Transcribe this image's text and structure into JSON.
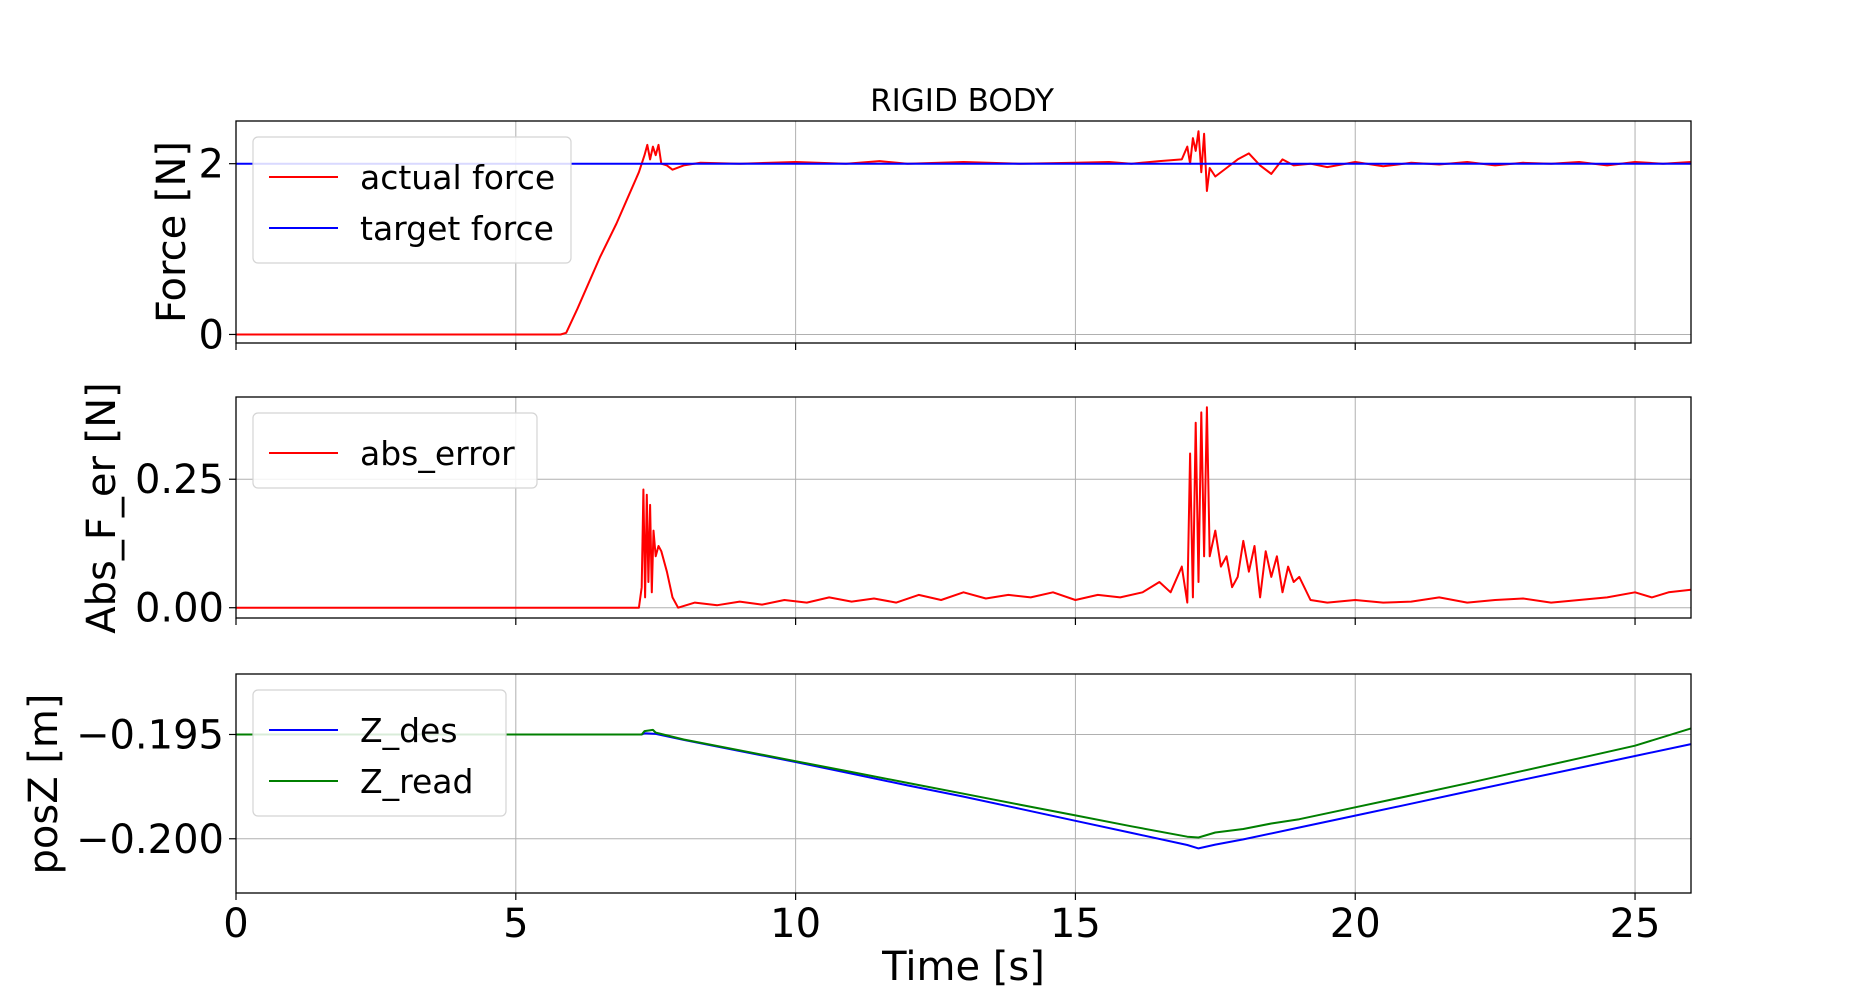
{
  "chart_data": [
    {
      "type": "line",
      "title": "RIGID BODY",
      "xlabel": "",
      "ylabel": "Force [N]",
      "xlim": [
        0,
        26
      ],
      "ylim": [
        -0.1,
        2.5
      ],
      "xticks": [
        0,
        5,
        10,
        15,
        20,
        25
      ],
      "yticks": [
        0,
        2
      ],
      "ytick_labels": [
        "0",
        "2"
      ],
      "grid": true,
      "legend_position": "upper-left",
      "series": [
        {
          "name": "actual force",
          "color": "#ff0000",
          "x": [
            0,
            5.8,
            5.9,
            6.1,
            6.3,
            6.5,
            6.8,
            7.0,
            7.2,
            7.3,
            7.35,
            7.4,
            7.45,
            7.5,
            7.55,
            7.6,
            7.7,
            7.8,
            8.0,
            8.3,
            9.0,
            10.0,
            10.9,
            11.5,
            12.0,
            13.0,
            14.0,
            15.0,
            15.6,
            16.0,
            16.5,
            16.9,
            17.0,
            17.05,
            17.1,
            17.15,
            17.2,
            17.25,
            17.3,
            17.35,
            17.4,
            17.5,
            17.7,
            17.9,
            18.1,
            18.3,
            18.5,
            18.7,
            18.9,
            19.2,
            19.5,
            20.0,
            20.5,
            21.0,
            21.5,
            22.0,
            22.5,
            23.0,
            23.5,
            24.0,
            24.5,
            25.0,
            25.5,
            26.0
          ],
          "y": [
            0,
            0,
            0.02,
            0.3,
            0.6,
            0.9,
            1.3,
            1.6,
            1.9,
            2.1,
            2.22,
            2.05,
            2.2,
            2.1,
            2.22,
            2.0,
            1.98,
            1.93,
            1.98,
            2.01,
            2.0,
            2.02,
            2.0,
            2.03,
            2.0,
            2.02,
            2.0,
            2.01,
            2.02,
            2.0,
            2.03,
            2.05,
            2.2,
            2.0,
            2.3,
            2.15,
            2.38,
            1.9,
            2.35,
            1.68,
            1.95,
            1.85,
            1.95,
            2.05,
            2.12,
            1.98,
            1.88,
            2.05,
            1.98,
            2.0,
            1.96,
            2.02,
            1.97,
            2.01,
            1.99,
            2.02,
            1.98,
            2.01,
            2.0,
            2.02,
            1.98,
            2.02,
            2.0,
            2.02
          ]
        },
        {
          "name": "target force",
          "color": "#0000ff",
          "x": [
            0,
            26
          ],
          "y": [
            2.0,
            2.0
          ]
        }
      ]
    },
    {
      "type": "line",
      "title": "",
      "xlabel": "",
      "ylabel": "Abs_F_er [N]",
      "xlim": [
        0,
        26
      ],
      "ylim": [
        -0.02,
        0.41
      ],
      "xticks": [
        0,
        5,
        10,
        15,
        20,
        25
      ],
      "yticks": [
        0.0,
        0.25
      ],
      "ytick_labels": [
        "0.00",
        "0.25"
      ],
      "grid": true,
      "legend_position": "upper-left",
      "series": [
        {
          "name": "abs_error",
          "color": "#ff0000",
          "x": [
            0,
            7.2,
            7.25,
            7.28,
            7.31,
            7.34,
            7.37,
            7.4,
            7.43,
            7.46,
            7.5,
            7.55,
            7.6,
            7.7,
            7.8,
            7.9,
            8.2,
            8.6,
            9.0,
            9.4,
            9.8,
            10.2,
            10.6,
            11.0,
            11.4,
            11.8,
            12.2,
            12.6,
            13.0,
            13.4,
            13.8,
            14.2,
            14.6,
            15.0,
            15.4,
            15.8,
            16.2,
            16.5,
            16.7,
            16.9,
            17.0,
            17.05,
            17.1,
            17.15,
            17.2,
            17.25,
            17.3,
            17.35,
            17.4,
            17.5,
            17.6,
            17.7,
            17.8,
            17.9,
            18.0,
            18.1,
            18.2,
            18.3,
            18.4,
            18.5,
            18.6,
            18.7,
            18.8,
            18.9,
            19.0,
            19.2,
            19.5,
            20.0,
            20.5,
            21.0,
            21.5,
            22.0,
            22.5,
            23.0,
            23.5,
            24.0,
            24.5,
            25.0,
            25.3,
            25.6,
            26.0
          ],
          "y": [
            0,
            0,
            0.04,
            0.23,
            0.02,
            0.22,
            0.05,
            0.2,
            0.03,
            0.15,
            0.1,
            0.12,
            0.11,
            0.07,
            0.02,
            0.0,
            0.01,
            0.005,
            0.012,
            0.006,
            0.015,
            0.01,
            0.02,
            0.012,
            0.018,
            0.01,
            0.025,
            0.015,
            0.03,
            0.018,
            0.025,
            0.02,
            0.03,
            0.015,
            0.025,
            0.02,
            0.03,
            0.05,
            0.03,
            0.08,
            0.01,
            0.3,
            0.02,
            0.36,
            0.05,
            0.38,
            0.1,
            0.39,
            0.1,
            0.15,
            0.08,
            0.1,
            0.04,
            0.06,
            0.13,
            0.07,
            0.12,
            0.02,
            0.11,
            0.06,
            0.1,
            0.03,
            0.08,
            0.05,
            0.06,
            0.015,
            0.01,
            0.015,
            0.01,
            0.012,
            0.02,
            0.01,
            0.015,
            0.018,
            0.01,
            0.015,
            0.02,
            0.03,
            0.02,
            0.03,
            0.035
          ]
        }
      ]
    },
    {
      "type": "line",
      "title": "",
      "xlabel": "Time [s]",
      "ylabel": "posZ [m]",
      "xlim": [
        0,
        26
      ],
      "ylim": [
        -0.2026,
        -0.1921
      ],
      "xticks": [
        0,
        5,
        10,
        15,
        20,
        25
      ],
      "xtick_labels": [
        "0",
        "5",
        "10",
        "15",
        "20",
        "25"
      ],
      "yticks": [
        -0.195,
        -0.2
      ],
      "ytick_labels": [
        "−0.195",
        "−0.200"
      ],
      "grid": true,
      "legend_position": "upper-left",
      "series": [
        {
          "name": "Z_des",
          "color": "#0000ff",
          "x": [
            0,
            7.25,
            7.3,
            7.5,
            8.0,
            9.0,
            10.0,
            11.0,
            12.0,
            13.0,
            14.0,
            15.0,
            16.0,
            17.0,
            17.2,
            17.5,
            18.0,
            19.0,
            20.0,
            21.0,
            22.0,
            23.0,
            24.0,
            25.0,
            26.0
          ],
          "y": [
            -0.195,
            -0.195,
            -0.19494,
            -0.19497,
            -0.19526,
            -0.19579,
            -0.19632,
            -0.19688,
            -0.19744,
            -0.19798,
            -0.19856,
            -0.19914,
            -0.19972,
            -0.2003,
            -0.20046,
            -0.20028,
            -0.20003,
            -0.19946,
            -0.19889,
            -0.19832,
            -0.19774,
            -0.19717,
            -0.1966,
            -0.19603,
            -0.19546
          ]
        },
        {
          "name": "Z_read",
          "color": "#007f00",
          "x": [
            0,
            7.25,
            7.3,
            7.45,
            7.5,
            8.0,
            9.0,
            10.0,
            11.0,
            12.0,
            13.0,
            14.0,
            15.0,
            16.0,
            17.0,
            17.2,
            17.5,
            18.0,
            18.5,
            19.0,
            20.0,
            21.0,
            22.0,
            23.0,
            24.0,
            25.0,
            26.0
          ],
          "y": [
            -0.195,
            -0.195,
            -0.19484,
            -0.19478,
            -0.19491,
            -0.19524,
            -0.19576,
            -0.19628,
            -0.1968,
            -0.19732,
            -0.19784,
            -0.19836,
            -0.19888,
            -0.1994,
            -0.1999,
            -0.19994,
            -0.1997,
            -0.19953,
            -0.19927,
            -0.19906,
            -0.19849,
            -0.19792,
            -0.19734,
            -0.19674,
            -0.19614,
            -0.19554,
            -0.19471
          ]
        }
      ]
    }
  ]
}
